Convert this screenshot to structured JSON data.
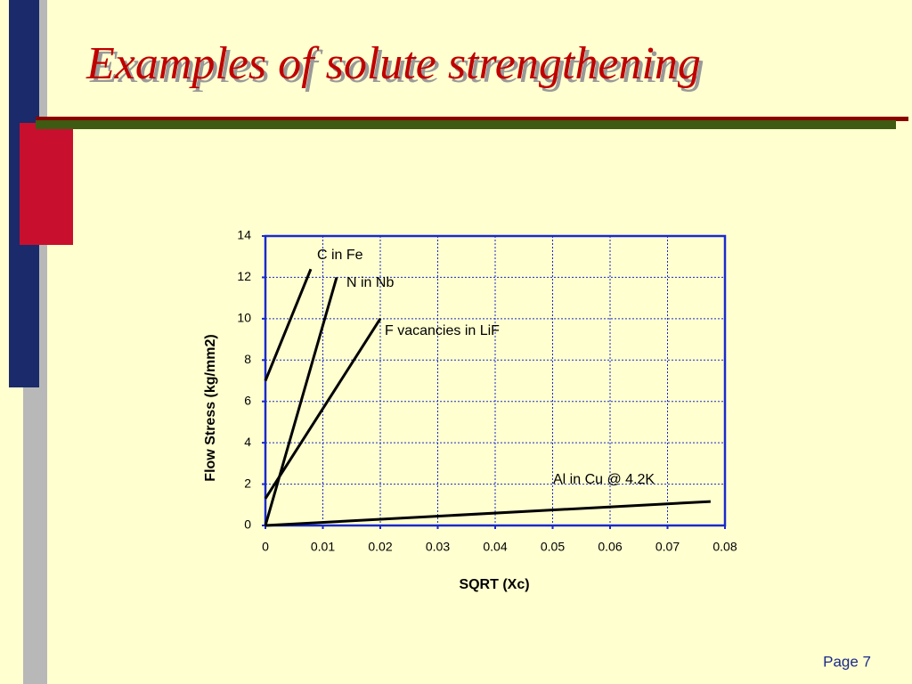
{
  "slide": {
    "title": "Examples of solute strengthening",
    "page": "Page 7"
  },
  "chart_data": {
    "type": "line",
    "xlabel": "SQRT (Xc)",
    "ylabel": "Flow Stress (kg/mm2)",
    "xlim": [
      0,
      0.08
    ],
    "xticks": [
      0,
      0.01,
      0.02,
      0.03,
      0.04,
      0.05,
      0.06,
      0.07,
      0.08
    ],
    "ylim": [
      0,
      14
    ],
    "yticks": [
      0,
      2,
      4,
      6,
      8,
      10,
      12,
      14
    ],
    "grid": true,
    "series": [
      {
        "name": "C in Fe",
        "color": "#000000",
        "x": [
          0,
          0.0079
        ],
        "values": [
          7,
          12.4
        ]
      },
      {
        "name": "N in Nb",
        "color": "#000000",
        "x": [
          0,
          0.0124
        ],
        "values": [
          0,
          12
        ]
      },
      {
        "name": "F vacancies in LiF",
        "color": "#000000",
        "x": [
          0,
          0.02
        ],
        "values": [
          1.3,
          10
        ]
      },
      {
        "name": "Al in Cu @ 4.2K",
        "color": "#000000",
        "x": [
          0,
          0.0775
        ],
        "values": [
          0,
          1.16
        ]
      }
    ]
  }
}
